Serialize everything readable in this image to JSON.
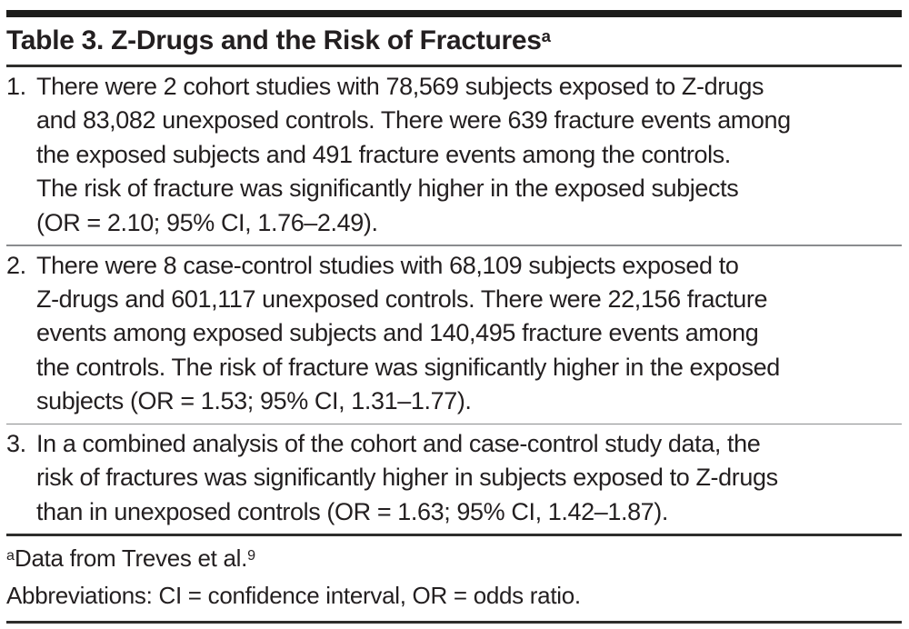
{
  "document": {
    "title": {
      "text": "Table 3. Z-Drugs and the Risk of Fractures",
      "superscript": "a"
    },
    "items": [
      {
        "number": "1.",
        "lines": [
          "There were 2 cohort studies with 78,569 subjects exposed to Z-drugs",
          "and 83,082 unexposed controls. There were 639 fracture events among",
          "the exposed subjects and 491 fracture events among the controls.",
          "The risk of fracture was significantly higher in the exposed subjects",
          "(OR = 2.10; 95% CI, 1.76–2.49)."
        ]
      },
      {
        "number": "2.",
        "lines": [
          "There were 8 case-control studies with 68,109 subjects exposed to",
          "Z-drugs and 601,117 unexposed controls. There were 22,156 fracture",
          "events among exposed subjects and 140,495 fracture events among",
          "the controls. The risk of fracture was significantly higher in the exposed",
          "subjects (OR = 1.53; 95% CI, 1.31–1.77)."
        ]
      },
      {
        "number": "3.",
        "lines": [
          "In a combined analysis of the cohort and case-control study data, the",
          "risk of fractures was significantly higher in subjects exposed to Z-drugs",
          "than in unexposed controls (OR = 1.63; 95% CI, 1.42–1.87)."
        ]
      }
    ],
    "footnotes": {
      "source": {
        "superscript": "a",
        "text": "Data from Treves et al.",
        "reference_superscript": "9"
      },
      "abbreviations": "Abbreviations: CI = confidence interval, OR = odds ratio."
    },
    "colors": {
      "text": "#231f20",
      "thick_bar": "#1d1d1b",
      "dark_rule": "#2e2e2c",
      "light_rule": "#8a8c8e",
      "background": "#ffffff"
    }
  }
}
